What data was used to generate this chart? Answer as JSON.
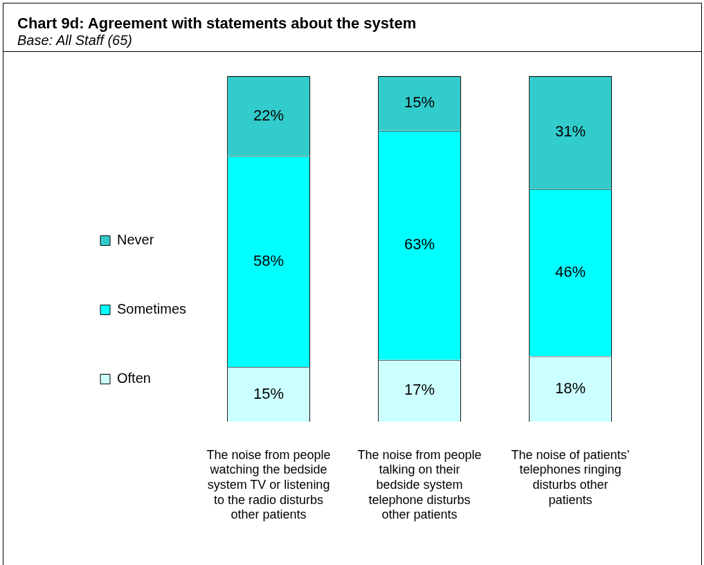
{
  "chart_data": {
    "type": "bar",
    "title": "Chart 9d: Agreement with statements about the system",
    "subtitle": "Base:  All Staff (65)",
    "categories": [
      "The noise from people watching  the bedside system TV or listening to the radio disturbs other patients",
      "The noise from people talking on their bedside system telephone disturbs other patients",
      "The noise of patients’ telephones ringing disturbs other patients"
    ],
    "stacked": true,
    "legend": "left",
    "series": [
      {
        "name": "Often",
        "color": "#ccffff",
        "values": [
          15,
          17,
          18
        ],
        "value_labels": [
          "15%",
          "17%",
          "18%"
        ]
      },
      {
        "name": "Sometimes",
        "color": "#00ffff",
        "values": [
          58,
          63,
          46
        ],
        "value_labels": [
          "58%",
          "63%",
          "46%"
        ]
      },
      {
        "name": "Never",
        "color": "#33cccc",
        "values": [
          22,
          15,
          31
        ],
        "value_labels": [
          "22%",
          "15%",
          "31%"
        ]
      }
    ]
  }
}
